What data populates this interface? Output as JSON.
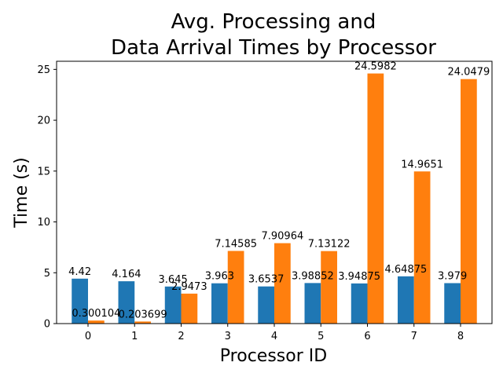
{
  "chart_data": {
    "type": "bar",
    "title_lines": [
      "Avg. Processing and",
      "Data Arrival Times by Processor"
    ],
    "xlabel": "Processor ID",
    "ylabel": "Time (s)",
    "categories": [
      "0",
      "1",
      "2",
      "3",
      "4",
      "5",
      "6",
      "7",
      "8"
    ],
    "ylim": [
      0,
      25.8
    ],
    "yticks": [
      0,
      5,
      10,
      15,
      20,
      25
    ],
    "grid": false,
    "series": [
      {
        "color": "#1f77b4",
        "values": [
          4.42,
          4.164,
          3.645,
          3.963,
          3.6537,
          3.98852,
          3.94875,
          4.64875,
          3.979
        ],
        "labels": [
          "4.42",
          "4.164",
          "3.645",
          "3.963",
          "3.6537",
          "3.98852",
          "3.94875",
          "4.64875",
          "3.979"
        ]
      },
      {
        "color": "#ff7f0e",
        "values": [
          0.300104,
          0.203699,
          2.9473,
          7.14585,
          7.90964,
          7.13122,
          24.5982,
          14.9651,
          24.0479
        ],
        "labels": [
          "0.300104",
          "0.203699",
          "2.9473",
          "7.14585",
          "7.90964",
          "7.13122",
          "24.5982",
          "14.9651",
          "24.0479"
        ]
      }
    ]
  }
}
